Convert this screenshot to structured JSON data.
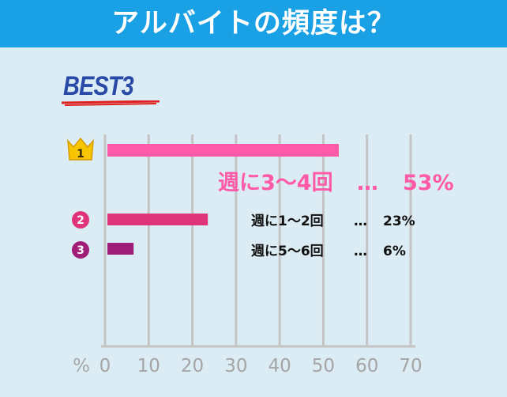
{
  "header": {
    "title": "アルバイトの頻度は？"
  },
  "best": {
    "label": "BEST3"
  },
  "colors": {
    "background": "#dcecf4",
    "header": "#1aa0e4",
    "rank1": "#ff5aa8",
    "rank2": "#e0347a",
    "rank3": "#a01e78",
    "grid": "#c4c4c4",
    "crown": "#f7c600"
  },
  "icons": {
    "rank1": "crown-icon",
    "rank2": "circle-number-icon",
    "rank3": "circle-number-icon"
  },
  "chart_data": {
    "type": "bar",
    "orientation": "horizontal",
    "categories": [
      "週に3〜4回",
      "週に1〜2回",
      "週に5〜6回"
    ],
    "ranks": [
      "1",
      "2",
      "3"
    ],
    "values": [
      53,
      23,
      6
    ],
    "value_labels": [
      "53%",
      "23%",
      "6%"
    ],
    "separator": "…",
    "xlabel": "%",
    "xlim": [
      0,
      70
    ],
    "xticks": [
      "0",
      "10",
      "20",
      "30",
      "40",
      "50",
      "60",
      "70"
    ],
    "grid": true
  }
}
